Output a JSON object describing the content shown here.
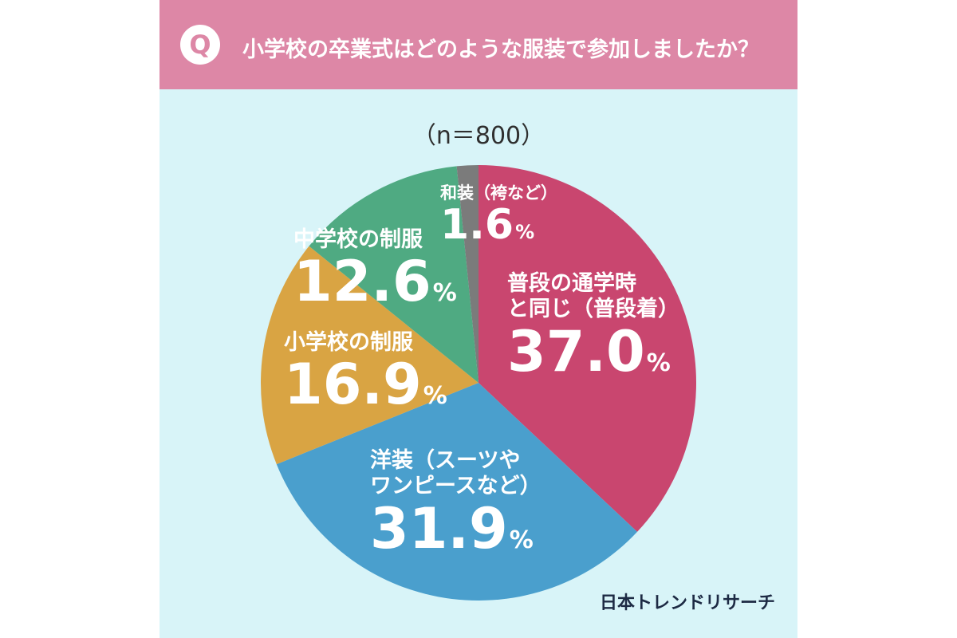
{
  "header": {
    "badge": "Q",
    "question": "小学校の卒業式はどのような服装で参加しましたか？"
  },
  "sample_size": "（n＝800）",
  "brand": "日本トレンドリサーチ",
  "colors": {
    "header_bg": "#dd87a6",
    "card_bg": "#d8f4f8",
    "pink": "#c9466f",
    "blue": "#4a9fcd",
    "orange": "#d9a443",
    "green": "#4faa82",
    "gray": "#7b7b7b"
  },
  "chart_data": {
    "type": "pie",
    "title": "小学校の卒業式はどのような服装で参加しましたか？",
    "subtitle": "（n＝800）",
    "unit": "%",
    "slices": [
      {
        "label_lines": [
          "普段の通学時",
          "と同じ（普段着）"
        ],
        "value": 37.0,
        "value_text": "37.0",
        "color": "#c9466f"
      },
      {
        "label_lines": [
          "洋装（スーツや",
          "ワンピースなど）"
        ],
        "value": 31.9,
        "value_text": "31.9",
        "color": "#4a9fcd"
      },
      {
        "label_lines": [
          "小学校の制服"
        ],
        "value": 16.9,
        "value_text": "16.9",
        "color": "#d9a443"
      },
      {
        "label_lines": [
          "中学校の制服"
        ],
        "value": 12.6,
        "value_text": "12.6",
        "color": "#4faa82"
      },
      {
        "label_lines": [
          "和装（袴など）"
        ],
        "value": 1.6,
        "value_text": "1.6",
        "color": "#7b7b7b"
      }
    ]
  }
}
